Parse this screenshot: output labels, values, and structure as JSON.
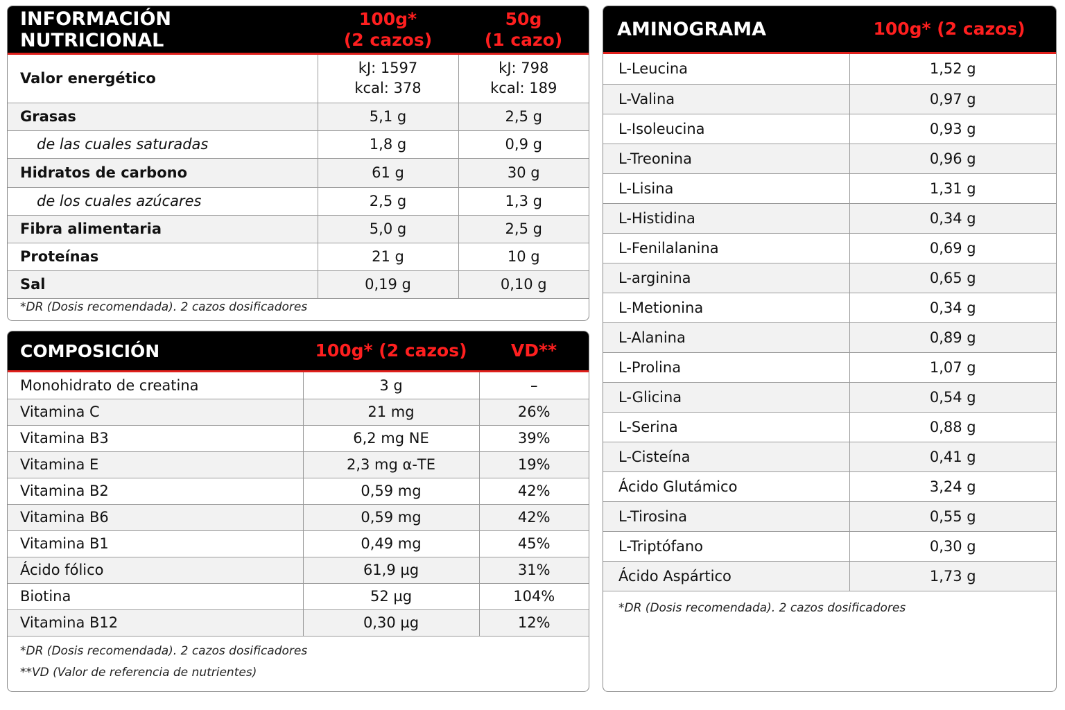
{
  "nutrition": {
    "title": "INFORMACIÓN NUTRICIONAL",
    "col1_header": "100g*\n(2 cazos)",
    "col2_header": "50g\n(1 cazo)",
    "rows": [
      {
        "label": "Valor energético",
        "v1": "kJ: 1597\nkcal: 378",
        "v2": "kJ: 798\nkcal: 189",
        "sub": false
      },
      {
        "label": "Grasas",
        "v1": "5,1 g",
        "v2": "2,5 g",
        "sub": false
      },
      {
        "label": "de las cuales saturadas",
        "v1": "1,8 g",
        "v2": "0,9 g",
        "sub": true
      },
      {
        "label": "Hidratos de carbono",
        "v1": "61 g",
        "v2": "30 g",
        "sub": false
      },
      {
        "label": "de los cuales azúcares",
        "v1": "2,5 g",
        "v2": "1,3 g",
        "sub": true
      },
      {
        "label": "Fibra alimentaria",
        "v1": "5,0 g",
        "v2": "2,5 g",
        "sub": false
      },
      {
        "label": "Proteínas",
        "v1": "21 g",
        "v2": "10 g",
        "sub": false
      },
      {
        "label": "Sal",
        "v1": "0,19 g",
        "v2": "0,10 g",
        "sub": false
      }
    ],
    "footnote": "*DR (Dosis recomendada). 2 cazos dosificadores"
  },
  "composition": {
    "title": "COMPOSICIÓN",
    "col1_header": "100g* (2 cazos)",
    "col2_header": "VD**",
    "rows": [
      {
        "label": "Monohidrato de creatina",
        "v1": "3 g",
        "v2": "–"
      },
      {
        "label": "Vitamina C",
        "v1": "21 mg",
        "v2": "26%"
      },
      {
        "label": "Vitamina B3",
        "v1": "6,2 mg NE",
        "v2": "39%"
      },
      {
        "label": "Vitamina E",
        "v1": "2,3 mg α-TE",
        "v2": "19%"
      },
      {
        "label": "Vitamina B2",
        "v1": "0,59 mg",
        "v2": "42%"
      },
      {
        "label": "Vitamina B6",
        "v1": "0,59 mg",
        "v2": "42%"
      },
      {
        "label": "Vitamina B1",
        "v1": "0,49 mg",
        "v2": "45%"
      },
      {
        "label": "Ácido fólico",
        "v1": "61,9 µg",
        "v2": "31%"
      },
      {
        "label": "Biotina",
        "v1": "52 µg",
        "v2": "104%"
      },
      {
        "label": "Vitamina B12",
        "v1": "0,30 µg",
        "v2": "12%"
      }
    ],
    "footnote1": "*DR (Dosis recomendada). 2 cazos dosificadores",
    "footnote2": "**VD (Valor de referencia de nutrientes)"
  },
  "aminogram": {
    "title": "AMINOGRAMA",
    "col1_header": "100g* (2 cazos)",
    "rows": [
      {
        "label": "L-Leucina",
        "v1": "1,52 g"
      },
      {
        "label": "L-Valina",
        "v1": "0,97 g"
      },
      {
        "label": "L-Isoleucina",
        "v1": "0,93 g"
      },
      {
        "label": "L-Treonina",
        "v1": "0,96 g"
      },
      {
        "label": "L-Lisina",
        "v1": "1,31 g"
      },
      {
        "label": "L-Histidina",
        "v1": "0,34 g"
      },
      {
        "label": "L-Fenilalanina",
        "v1": "0,69 g"
      },
      {
        "label": "L-arginina",
        "v1": "0,65 g"
      },
      {
        "label": "L-Metionina",
        "v1": "0,34 g"
      },
      {
        "label": "L-Alanina",
        "v1": "0,89 g"
      },
      {
        "label": "L-Prolina",
        "v1": "1,07 g"
      },
      {
        "label": "L-Glicina",
        "v1": "0,54 g"
      },
      {
        "label": "L-Serina",
        "v1": "0,88 g"
      },
      {
        "label": "L-Cisteína",
        "v1": "0,41 g"
      },
      {
        "label": "Ácido Glutámico",
        "v1": "3,24 g"
      },
      {
        "label": "L-Tirosina",
        "v1": "0,55 g"
      },
      {
        "label": "L-Triptófano",
        "v1": "0,30 g"
      },
      {
        "label": "Ácido Aspártico",
        "v1": "1,73 g"
      }
    ],
    "footnote": "*DR (Dosis recomendada). 2 cazos dosificadores"
  },
  "colors": {
    "header_bg": "#000000",
    "accent_red": "#ff1f1f",
    "stripe": "#f2f2f2",
    "border": "#9a9a9a"
  }
}
